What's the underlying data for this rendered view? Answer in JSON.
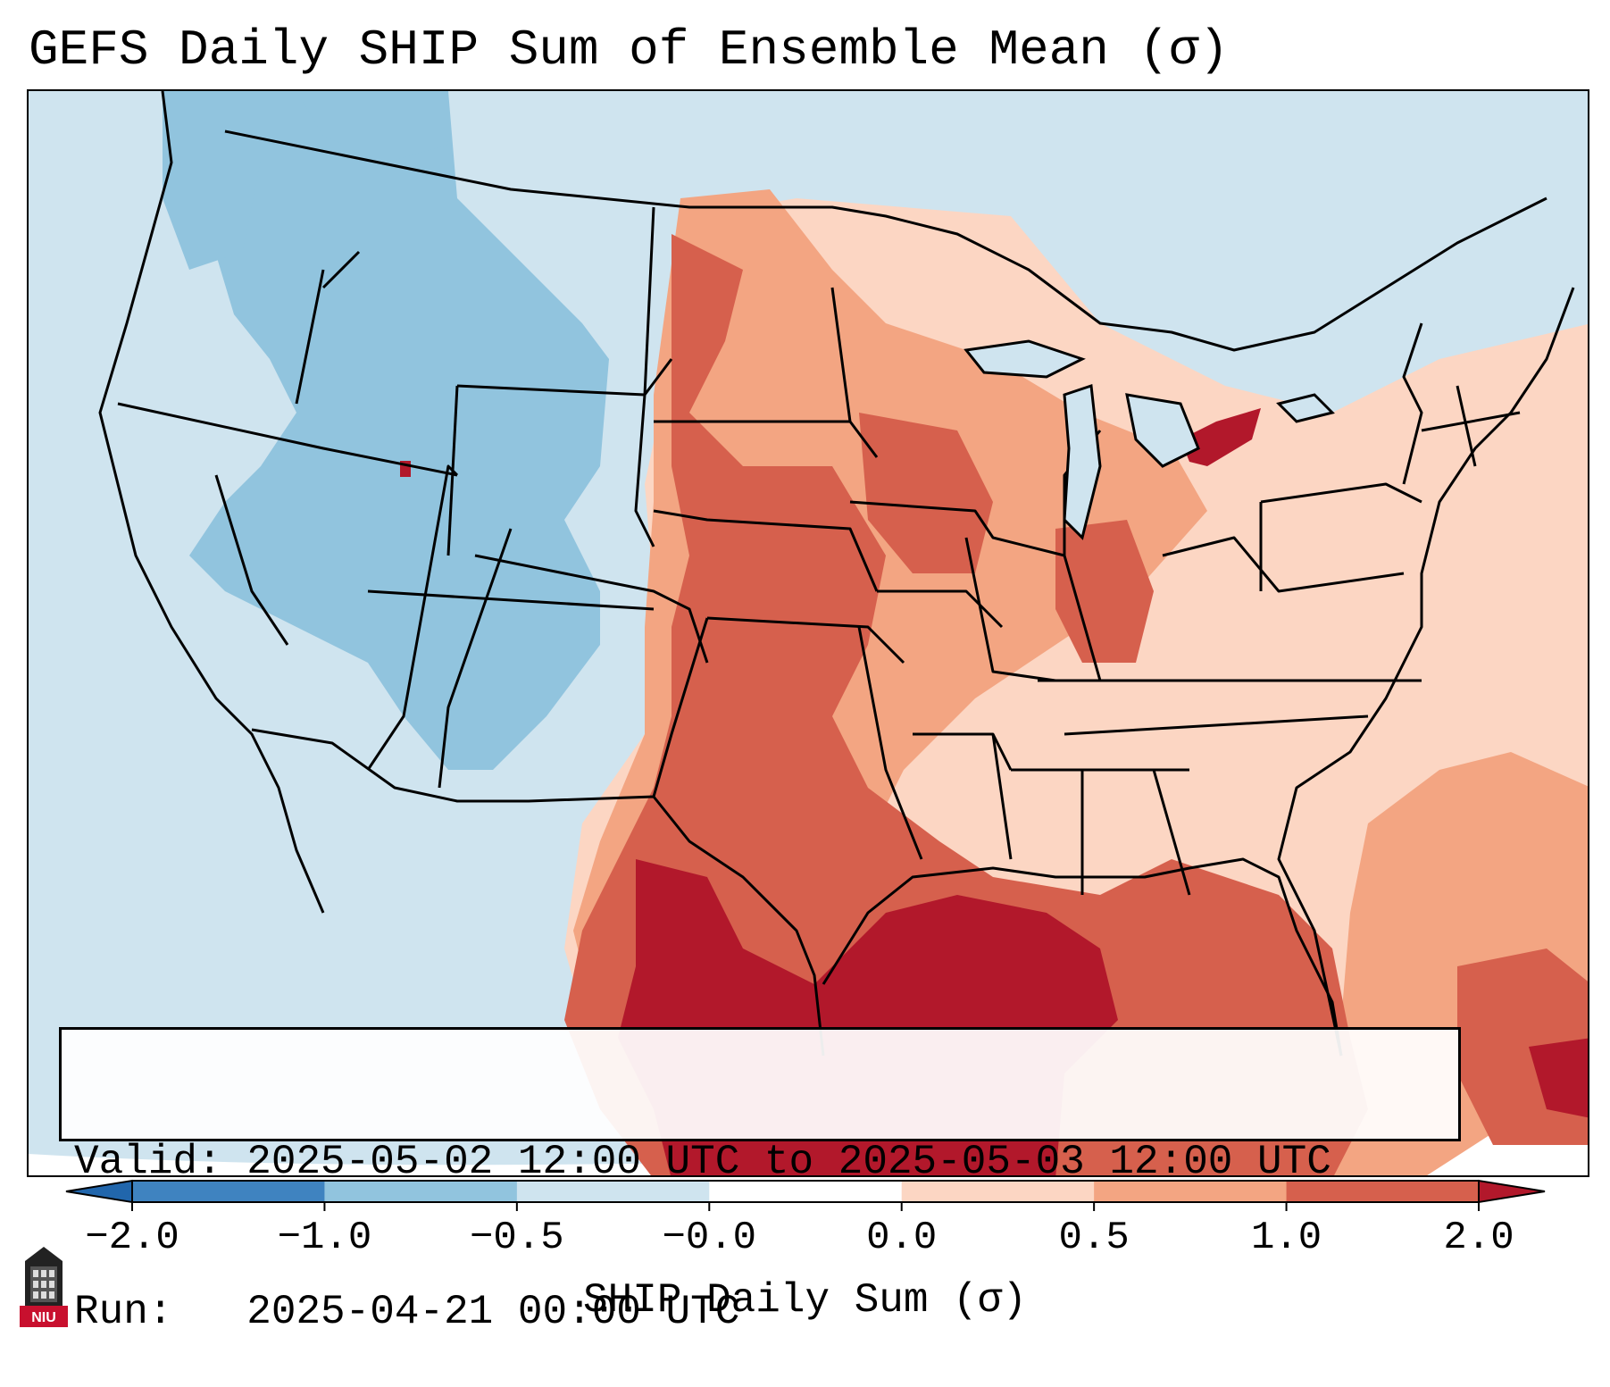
{
  "title": "GEFS Daily SHIP Sum of Ensemble Mean (σ)",
  "info": {
    "valid_line": "Valid: 2025-05-02 12:00 UTC to 2025-05-03 12:00 UTC",
    "run_line": "Run:   2025-04-21 00:00 UTC"
  },
  "colorbar": {
    "label": "SHIP Daily Sum (σ)",
    "ticks": [
      "−2.0",
      "−1.0",
      "−0.5",
      "−0.0",
      "0.0",
      "0.5",
      "1.0",
      "2.0"
    ],
    "colors": [
      "#3f83c0",
      "#91c4de",
      "#cfe4ef",
      "#ffffff",
      "#fcd6c3",
      "#f3a582",
      "#d6604d"
    ],
    "extend_low_color": "#2166ac",
    "extend_high_color": "#b2182b",
    "extend": "both"
  },
  "map": {
    "projection": "Lambert conformal conic",
    "region": "Contiguous United States",
    "background_color": "#cfe4ef",
    "boundaries": "state and country borders, coastlines",
    "regions": [
      {
        "name": "gulf-coast-max",
        "level": "2.0",
        "color": "#b2182b"
      },
      {
        "name": "texas-high",
        "level": "1.0",
        "color": "#d6604d"
      },
      {
        "name": "plains-moderate",
        "level": "0.5",
        "color": "#f3a582"
      },
      {
        "name": "east-low",
        "level": "0.0",
        "color": "#fcd6c3"
      },
      {
        "name": "west-negative",
        "level": "-0.5",
        "color": "#91c4de"
      },
      {
        "name": "lake-erie-max",
        "level": "2.0",
        "color": "#b2182b"
      }
    ]
  },
  "logo": {
    "text": "NIU",
    "color": "#c8102e"
  }
}
